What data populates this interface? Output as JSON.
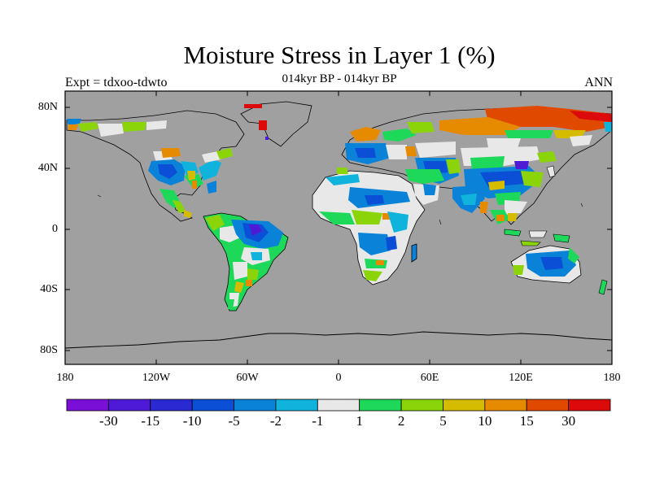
{
  "header": {
    "title": "Moisture Stress in Layer 1 (%)",
    "subtitle": "014kyr BP - 014kyr BP",
    "left": "Expt = tdxoo-tdwto",
    "right": "ANN"
  },
  "axes": {
    "lat_labels": [
      "80N",
      "40N",
      "0",
      "40S",
      "80S"
    ],
    "lon_labels": [
      "180",
      "120W",
      "60W",
      "0",
      "60E",
      "120E",
      "180"
    ]
  },
  "colorbar": {
    "labels": [
      "-30",
      "-15",
      "-10",
      "-5",
      "-2",
      "-1",
      "1",
      "2",
      "5",
      "10",
      "15",
      "30"
    ],
    "colors": [
      "#7a10d8",
      "#4f1ad6",
      "#2a2ad2",
      "#0a4fd6",
      "#0a82d8",
      "#10b3dc",
      "#e8e8e8",
      "#1ed85a",
      "#8cd40a",
      "#d6bc00",
      "#e68a00",
      "#e04a00",
      "#dc0a0a"
    ]
  },
  "colors": {
    "ocean": "#a0a0a0",
    "neutral_land": "#e8e8e8"
  }
}
